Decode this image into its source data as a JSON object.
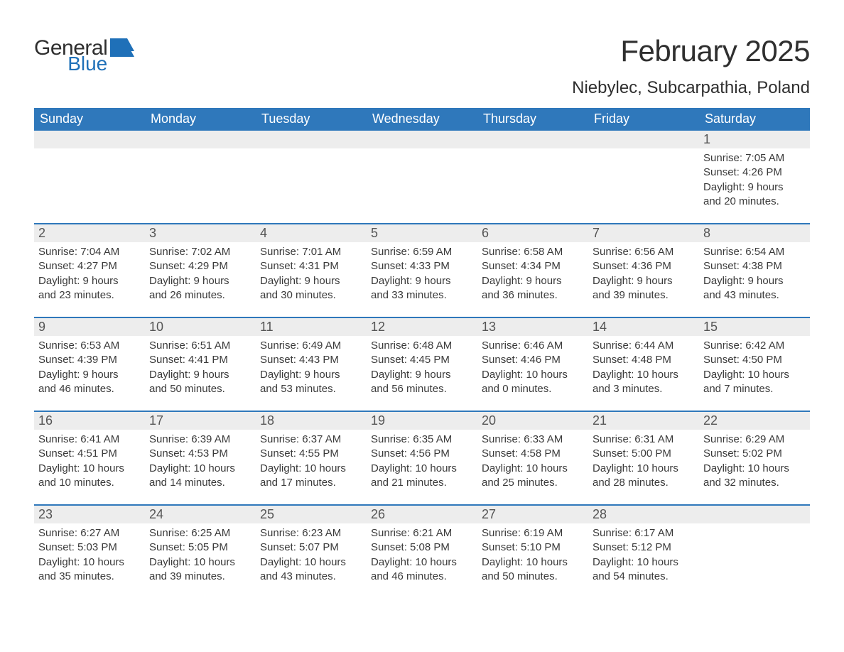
{
  "brand": {
    "word1": "General",
    "word2": "Blue",
    "logo_color": "#1f70b8",
    "text_color": "#2f2f2f"
  },
  "title": "February 2025",
  "location": "Niebylec, Subcarpathia, Poland",
  "colors": {
    "header_bg": "#2f78bb",
    "header_fg": "#ffffff",
    "band_bg": "#ededed",
    "rule": "#2f78bb",
    "body_text": "#3a3a3a",
    "page_bg": "#ffffff"
  },
  "days_of_week": [
    "Sunday",
    "Monday",
    "Tuesday",
    "Wednesday",
    "Thursday",
    "Friday",
    "Saturday"
  ],
  "weeks": [
    [
      {
        "n": "",
        "sunrise": "",
        "sunset": "",
        "daylight1": "",
        "daylight2": ""
      },
      {
        "n": "",
        "sunrise": "",
        "sunset": "",
        "daylight1": "",
        "daylight2": ""
      },
      {
        "n": "",
        "sunrise": "",
        "sunset": "",
        "daylight1": "",
        "daylight2": ""
      },
      {
        "n": "",
        "sunrise": "",
        "sunset": "",
        "daylight1": "",
        "daylight2": ""
      },
      {
        "n": "",
        "sunrise": "",
        "sunset": "",
        "daylight1": "",
        "daylight2": ""
      },
      {
        "n": "",
        "sunrise": "",
        "sunset": "",
        "daylight1": "",
        "daylight2": ""
      },
      {
        "n": "1",
        "sunrise": "Sunrise: 7:05 AM",
        "sunset": "Sunset: 4:26 PM",
        "daylight1": "Daylight: 9 hours",
        "daylight2": "and 20 minutes."
      }
    ],
    [
      {
        "n": "2",
        "sunrise": "Sunrise: 7:04 AM",
        "sunset": "Sunset: 4:27 PM",
        "daylight1": "Daylight: 9 hours",
        "daylight2": "and 23 minutes."
      },
      {
        "n": "3",
        "sunrise": "Sunrise: 7:02 AM",
        "sunset": "Sunset: 4:29 PM",
        "daylight1": "Daylight: 9 hours",
        "daylight2": "and 26 minutes."
      },
      {
        "n": "4",
        "sunrise": "Sunrise: 7:01 AM",
        "sunset": "Sunset: 4:31 PM",
        "daylight1": "Daylight: 9 hours",
        "daylight2": "and 30 minutes."
      },
      {
        "n": "5",
        "sunrise": "Sunrise: 6:59 AM",
        "sunset": "Sunset: 4:33 PM",
        "daylight1": "Daylight: 9 hours",
        "daylight2": "and 33 minutes."
      },
      {
        "n": "6",
        "sunrise": "Sunrise: 6:58 AM",
        "sunset": "Sunset: 4:34 PM",
        "daylight1": "Daylight: 9 hours",
        "daylight2": "and 36 minutes."
      },
      {
        "n": "7",
        "sunrise": "Sunrise: 6:56 AM",
        "sunset": "Sunset: 4:36 PM",
        "daylight1": "Daylight: 9 hours",
        "daylight2": "and 39 minutes."
      },
      {
        "n": "8",
        "sunrise": "Sunrise: 6:54 AM",
        "sunset": "Sunset: 4:38 PM",
        "daylight1": "Daylight: 9 hours",
        "daylight2": "and 43 minutes."
      }
    ],
    [
      {
        "n": "9",
        "sunrise": "Sunrise: 6:53 AM",
        "sunset": "Sunset: 4:39 PM",
        "daylight1": "Daylight: 9 hours",
        "daylight2": "and 46 minutes."
      },
      {
        "n": "10",
        "sunrise": "Sunrise: 6:51 AM",
        "sunset": "Sunset: 4:41 PM",
        "daylight1": "Daylight: 9 hours",
        "daylight2": "and 50 minutes."
      },
      {
        "n": "11",
        "sunrise": "Sunrise: 6:49 AM",
        "sunset": "Sunset: 4:43 PM",
        "daylight1": "Daylight: 9 hours",
        "daylight2": "and 53 minutes."
      },
      {
        "n": "12",
        "sunrise": "Sunrise: 6:48 AM",
        "sunset": "Sunset: 4:45 PM",
        "daylight1": "Daylight: 9 hours",
        "daylight2": "and 56 minutes."
      },
      {
        "n": "13",
        "sunrise": "Sunrise: 6:46 AM",
        "sunset": "Sunset: 4:46 PM",
        "daylight1": "Daylight: 10 hours",
        "daylight2": "and 0 minutes."
      },
      {
        "n": "14",
        "sunrise": "Sunrise: 6:44 AM",
        "sunset": "Sunset: 4:48 PM",
        "daylight1": "Daylight: 10 hours",
        "daylight2": "and 3 minutes."
      },
      {
        "n": "15",
        "sunrise": "Sunrise: 6:42 AM",
        "sunset": "Sunset: 4:50 PM",
        "daylight1": "Daylight: 10 hours",
        "daylight2": "and 7 minutes."
      }
    ],
    [
      {
        "n": "16",
        "sunrise": "Sunrise: 6:41 AM",
        "sunset": "Sunset: 4:51 PM",
        "daylight1": "Daylight: 10 hours",
        "daylight2": "and 10 minutes."
      },
      {
        "n": "17",
        "sunrise": "Sunrise: 6:39 AM",
        "sunset": "Sunset: 4:53 PM",
        "daylight1": "Daylight: 10 hours",
        "daylight2": "and 14 minutes."
      },
      {
        "n": "18",
        "sunrise": "Sunrise: 6:37 AM",
        "sunset": "Sunset: 4:55 PM",
        "daylight1": "Daylight: 10 hours",
        "daylight2": "and 17 minutes."
      },
      {
        "n": "19",
        "sunrise": "Sunrise: 6:35 AM",
        "sunset": "Sunset: 4:56 PM",
        "daylight1": "Daylight: 10 hours",
        "daylight2": "and 21 minutes."
      },
      {
        "n": "20",
        "sunrise": "Sunrise: 6:33 AM",
        "sunset": "Sunset: 4:58 PM",
        "daylight1": "Daylight: 10 hours",
        "daylight2": "and 25 minutes."
      },
      {
        "n": "21",
        "sunrise": "Sunrise: 6:31 AM",
        "sunset": "Sunset: 5:00 PM",
        "daylight1": "Daylight: 10 hours",
        "daylight2": "and 28 minutes."
      },
      {
        "n": "22",
        "sunrise": "Sunrise: 6:29 AM",
        "sunset": "Sunset: 5:02 PM",
        "daylight1": "Daylight: 10 hours",
        "daylight2": "and 32 minutes."
      }
    ],
    [
      {
        "n": "23",
        "sunrise": "Sunrise: 6:27 AM",
        "sunset": "Sunset: 5:03 PM",
        "daylight1": "Daylight: 10 hours",
        "daylight2": "and 35 minutes."
      },
      {
        "n": "24",
        "sunrise": "Sunrise: 6:25 AM",
        "sunset": "Sunset: 5:05 PM",
        "daylight1": "Daylight: 10 hours",
        "daylight2": "and 39 minutes."
      },
      {
        "n": "25",
        "sunrise": "Sunrise: 6:23 AM",
        "sunset": "Sunset: 5:07 PM",
        "daylight1": "Daylight: 10 hours",
        "daylight2": "and 43 minutes."
      },
      {
        "n": "26",
        "sunrise": "Sunrise: 6:21 AM",
        "sunset": "Sunset: 5:08 PM",
        "daylight1": "Daylight: 10 hours",
        "daylight2": "and 46 minutes."
      },
      {
        "n": "27",
        "sunrise": "Sunrise: 6:19 AM",
        "sunset": "Sunset: 5:10 PM",
        "daylight1": "Daylight: 10 hours",
        "daylight2": "and 50 minutes."
      },
      {
        "n": "28",
        "sunrise": "Sunrise: 6:17 AM",
        "sunset": "Sunset: 5:12 PM",
        "daylight1": "Daylight: 10 hours",
        "daylight2": "and 54 minutes."
      },
      {
        "n": "",
        "sunrise": "",
        "sunset": "",
        "daylight1": "",
        "daylight2": ""
      }
    ]
  ]
}
